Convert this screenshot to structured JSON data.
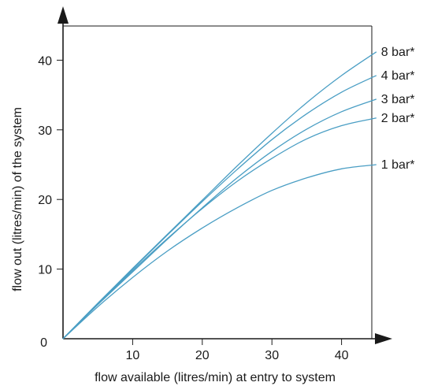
{
  "chart_data": {
    "type": "line",
    "title": "",
    "xlabel": "flow available (litres/min) at entry to system",
    "ylabel": "flow out (litres/min) of the system",
    "xlim": [
      0,
      45
    ],
    "ylim": [
      0,
      45
    ],
    "xticks": [
      0,
      10,
      20,
      30,
      40
    ],
    "yticks": [
      0,
      10,
      20,
      30,
      40
    ],
    "grid": false,
    "legend": "right-end labels",
    "line_color": "#4a9ec4",
    "series": [
      {
        "name": "8 bar*",
        "x": [
          0,
          5,
          10,
          15,
          20,
          25,
          30,
          35,
          40,
          45
        ],
        "y": [
          0,
          5.1,
          10.1,
          15.0,
          19.9,
          24.8,
          29.5,
          33.9,
          37.8,
          41.2
        ]
      },
      {
        "name": "4 bar*",
        "x": [
          0,
          5,
          10,
          15,
          20,
          25,
          30,
          35,
          40,
          45
        ],
        "y": [
          0,
          5.1,
          10.0,
          14.9,
          19.7,
          24.3,
          28.6,
          32.3,
          35.4,
          37.8
        ]
      },
      {
        "name": "3 bar*",
        "x": [
          0,
          5,
          10,
          15,
          20,
          25,
          30,
          35,
          40,
          45
        ],
        "y": [
          0,
          4.9,
          9.6,
          14.3,
          18.8,
          23.1,
          26.9,
          30.1,
          32.6,
          34.4
        ]
      },
      {
        "name": "2 bar*",
        "x": [
          0,
          5,
          10,
          15,
          20,
          25,
          30,
          35,
          40,
          45
        ],
        "y": [
          0,
          5.0,
          9.8,
          14.4,
          18.7,
          22.6,
          25.9,
          28.7,
          30.6,
          31.7
        ]
      },
      {
        "name": "1 bar*",
        "x": [
          0,
          5,
          10,
          15,
          20,
          25,
          30,
          35,
          40,
          45
        ],
        "y": [
          0,
          4.6,
          8.8,
          12.6,
          15.9,
          18.8,
          21.3,
          23.1,
          24.4,
          25.0
        ]
      }
    ]
  }
}
